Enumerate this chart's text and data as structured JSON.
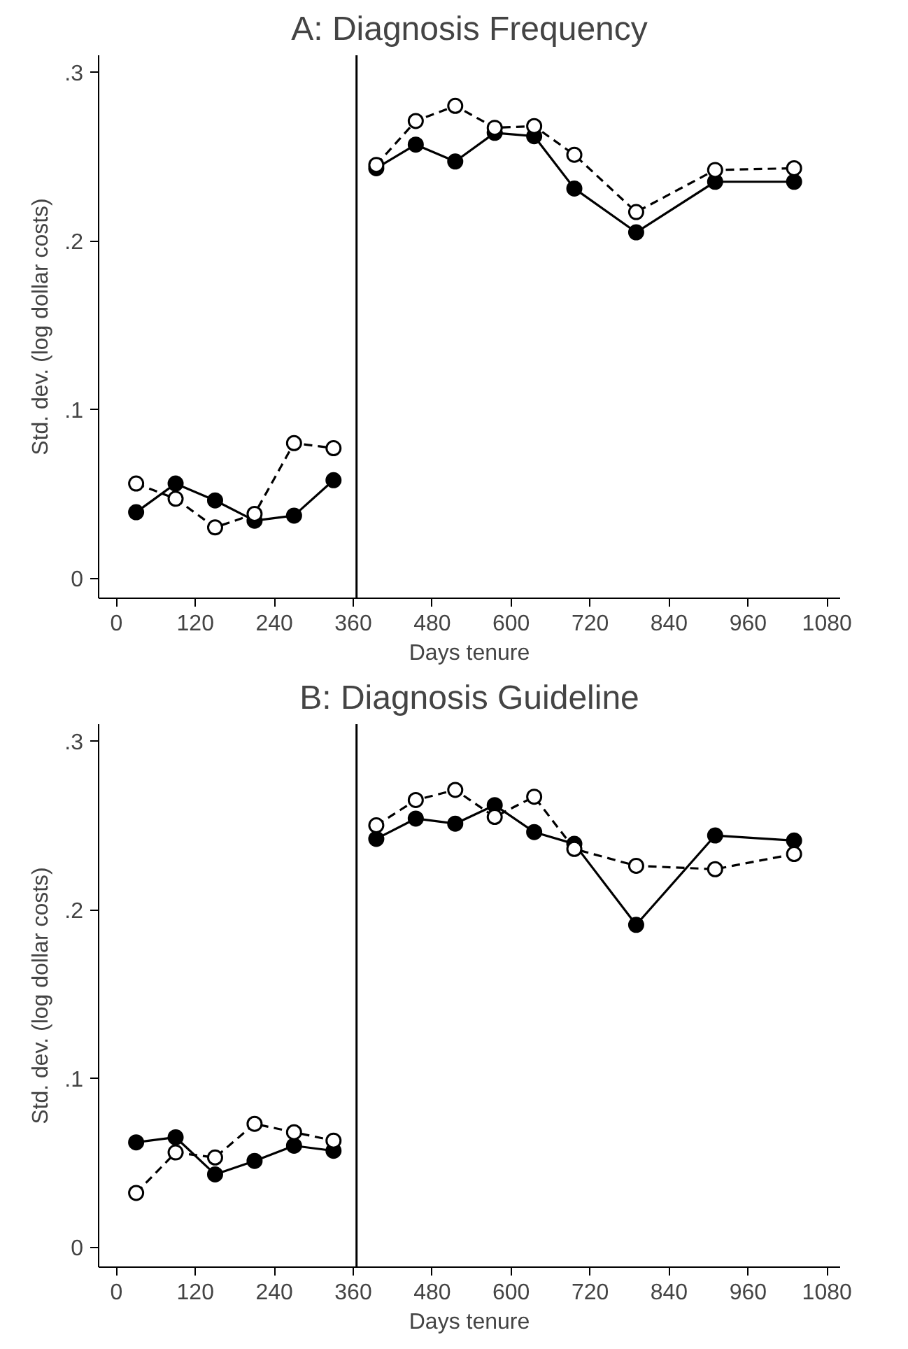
{
  "chart_data": [
    {
      "type": "line",
      "title": "A: Diagnosis Frequency",
      "xlabel": "Days tenure",
      "ylabel": "Std. dev. (log dollar costs)",
      "x": [
        30,
        90,
        150,
        210,
        270,
        330,
        365,
        395,
        455,
        515,
        575,
        635,
        696,
        790,
        910,
        1030
      ],
      "series": [
        {
          "color": "#000000",
          "marker": "circle",
          "line_style": "solid",
          "values": [
            0.039,
            0.056,
            0.046,
            0.034,
            0.037,
            0.058,
            null,
            0.243,
            0.257,
            0.247,
            0.264,
            0.262,
            0.231,
            0.205,
            0.235,
            0.235
          ]
        },
        {
          "color": "#000000",
          "marker": "circle",
          "line_style": "dashed",
          "values": [
            0.056,
            0.047,
            0.03,
            0.038,
            0.08,
            0.077,
            null,
            0.245,
            0.271,
            0.28,
            0.267,
            0.268,
            0.251,
            0.217,
            0.242,
            0.243
          ]
        }
      ],
      "xlim": [
        -27,
        1100
      ],
      "ylim": [
        -0.012,
        0.31
      ],
      "xticks": [
        0,
        120,
        240,
        360,
        480,
        600,
        720,
        840,
        960,
        1080
      ],
      "yticks": [
        {
          "value": 0,
          "label": "0"
        },
        {
          "value": 0.1,
          "label": ".1"
        },
        {
          "value": 0.2,
          "label": ".2"
        },
        {
          "value": 0.3,
          "label": ".3"
        }
      ],
      "ref_lines": [
        {
          "axis": "x",
          "value": 365,
          "color": "#000000"
        }
      ]
    },
    {
      "type": "line",
      "title": "B: Diagnosis Guideline",
      "xlabel": "Days tenure",
      "ylabel": "Std. dev. (log dollar costs)",
      "x": [
        30,
        90,
        150,
        210,
        270,
        330,
        365,
        395,
        455,
        515,
        575,
        635,
        696,
        790,
        910,
        1030
      ],
      "series": [
        {
          "color": "#000000",
          "marker": "circle",
          "line_style": "solid",
          "values": [
            0.062,
            0.065,
            0.043,
            0.051,
            0.06,
            0.057,
            null,
            0.242,
            0.254,
            0.251,
            0.262,
            0.246,
            0.239,
            0.191,
            0.244,
            0.241
          ]
        },
        {
          "color": "#000000",
          "marker": "circle",
          "line_style": "dashed",
          "values": [
            0.032,
            0.056,
            0.053,
            0.073,
            0.068,
            0.063,
            null,
            0.25,
            0.265,
            0.271,
            0.255,
            0.267,
            0.236,
            0.226,
            0.224,
            0.233
          ]
        }
      ],
      "xlim": [
        -27,
        1100
      ],
      "ylim": [
        -0.012,
        0.31
      ],
      "xticks": [
        0,
        120,
        240,
        360,
        480,
        600,
        720,
        840,
        960,
        1080
      ],
      "yticks": [
        {
          "value": 0,
          "label": "0"
        },
        {
          "value": 0.1,
          "label": ".1"
        },
        {
          "value": 0.2,
          "label": ".2"
        },
        {
          "value": 0.3,
          "label": ".3"
        }
      ],
      "ref_lines": [
        {
          "axis": "x",
          "value": 365,
          "color": "#000000"
        }
      ]
    }
  ]
}
